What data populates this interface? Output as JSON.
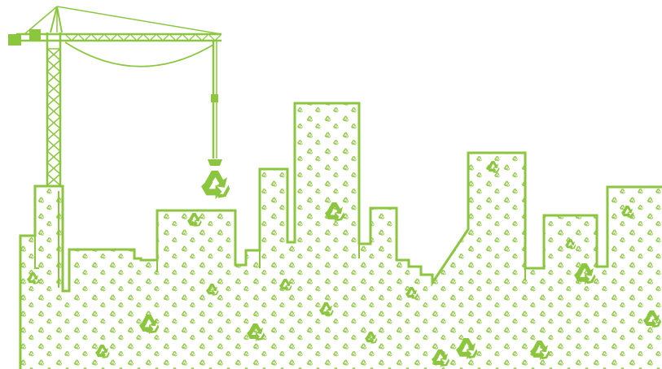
{
  "image": {
    "palette": {
      "background": "#ffffff",
      "primary_green": "#8cc63f",
      "dark_green": "#6fa82e",
      "light_green": "#b5d98a"
    },
    "motif_icon": "recycle-icon",
    "subjects": [
      "construction-crane",
      "city-skyline",
      "recycling-symbols"
    ]
  }
}
